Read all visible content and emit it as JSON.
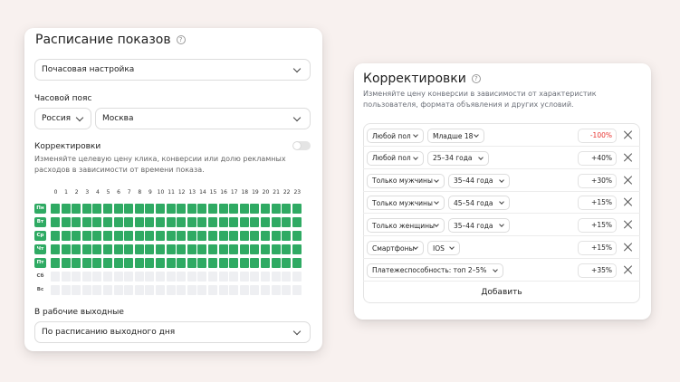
{
  "colors": {
    "active": "#2faa63",
    "inactive": "#eeeff2",
    "negative": "#e8322e"
  },
  "schedule": {
    "title": "Расписание показов",
    "mode": "Почасовая настройка",
    "timezone_label": "Часовой пояс",
    "country": "Россия",
    "city": "Москва",
    "adjust_label": "Корректировки",
    "adjust_desc_1": "Изменяйте целевую цену клика, конверсии или долю рекламных",
    "adjust_desc_2": "расходов в зависимости от времени показа.",
    "hours": [
      "0",
      "1",
      "2",
      "3",
      "4",
      "5",
      "6",
      "7",
      "8",
      "9",
      "10",
      "11",
      "12",
      "13",
      "14",
      "15",
      "16",
      "17",
      "18",
      "19",
      "20",
      "21",
      "22",
      "23"
    ],
    "days": [
      {
        "label": "Пн",
        "active": true
      },
      {
        "label": "Вт",
        "active": true
      },
      {
        "label": "Ср",
        "active": true
      },
      {
        "label": "Чт",
        "active": true
      },
      {
        "label": "Пт",
        "active": true
      },
      {
        "label": "Сб",
        "active": false
      },
      {
        "label": "Вс",
        "active": false
      }
    ],
    "weekend_label": "В рабочие выходные",
    "weekend_value": "По расписанию выходного дня"
  },
  "corrections": {
    "title": "Корректировки",
    "desc_1": "Изменяйте цену конверсии в зависимости от характеристик",
    "desc_2": "пользователя, формата объявления и других условий.",
    "rows": [
      {
        "a": "Любой пол",
        "b": "Младше 18",
        "value": "-100%"
      },
      {
        "a": "Любой пол",
        "b": "25–34 года",
        "value": "+40%"
      },
      {
        "a": "Только мужчины",
        "b": "35–44 года",
        "value": "+30%"
      },
      {
        "a": "Только мужчины",
        "b": "45–54 года",
        "value": "+15%"
      },
      {
        "a": "Только женщины",
        "b": "35–44 года",
        "value": "+15%"
      },
      {
        "a": "Смартфоны",
        "b": "IOS",
        "value": "+15%"
      },
      {
        "a": "Платежеспособность: топ 2–5%",
        "b": "",
        "value": "+35%"
      }
    ],
    "add_label": "Добавить"
  }
}
